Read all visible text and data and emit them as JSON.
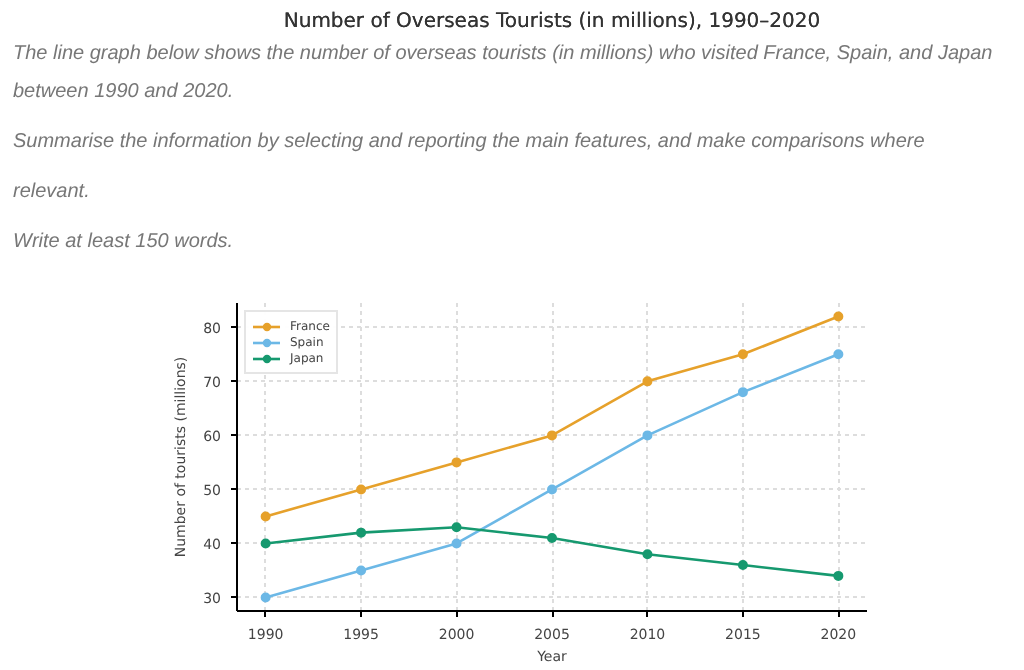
{
  "chart_data": {
    "type": "line",
    "title": "Number of Overseas Tourists (in millions), 1990–2020",
    "annotations": [
      "The line graph below shows the number of overseas tourists (in millions) who visited France, Spain, and Japan",
      "between 1990 and 2020.",
      "Summarise the information by selecting and reporting the main features, and make comparisons where",
      "relevant.",
      "Write at least 150 words."
    ],
    "xlabel": "Year",
    "ylabel": "Number of tourists (millions)",
    "x": [
      1990,
      1995,
      2000,
      2005,
      2010,
      2015,
      2020
    ],
    "series": [
      {
        "name": "France",
        "color": "#e6a12b",
        "values": [
          45,
          50,
          55,
          60,
          70,
          75,
          82
        ]
      },
      {
        "name": "Spain",
        "color": "#6cb8e6",
        "values": [
          30,
          35,
          40,
          50,
          60,
          68,
          75
        ]
      },
      {
        "name": "Japan",
        "color": "#16996f",
        "values": [
          40,
          42,
          43,
          41,
          38,
          36,
          34
        ]
      }
    ],
    "xlim": [
      1988.5,
      2021.5
    ],
    "ylim": [
      27.5,
      84.5
    ],
    "xticks": [
      1990,
      1995,
      2000,
      2005,
      2010,
      2015,
      2020
    ],
    "yticks": [
      30,
      40,
      50,
      60,
      70,
      80
    ],
    "grid": true,
    "legend": "top left",
    "marker": "circle",
    "line_style": "solid"
  }
}
